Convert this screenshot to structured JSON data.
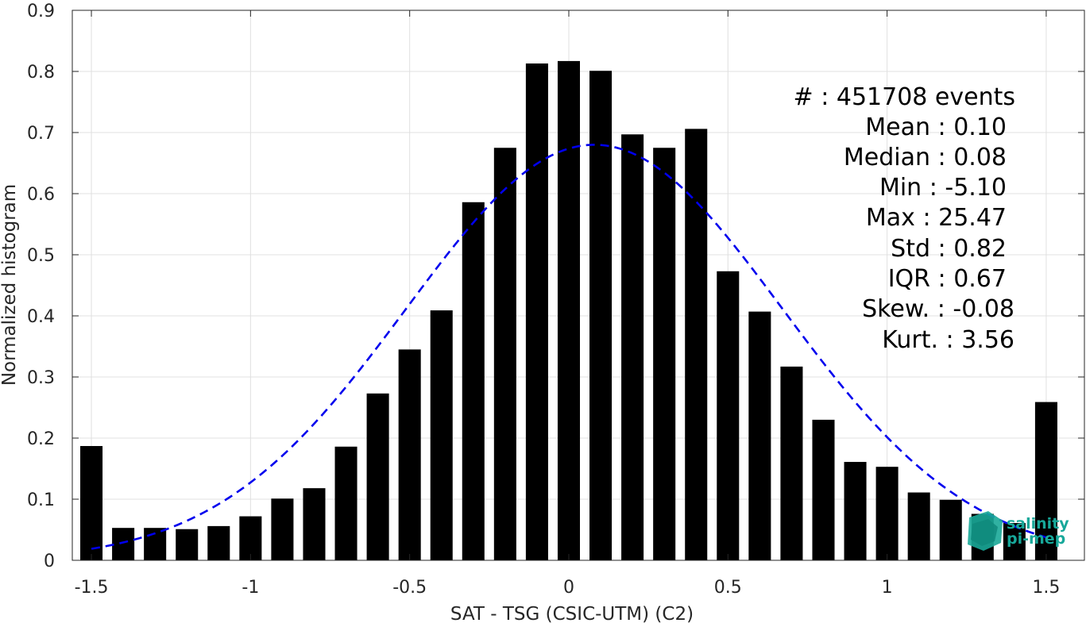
{
  "chart_data": {
    "type": "bar",
    "xlabel": "SAT - TSG (CSIC-UTM) (C2)",
    "ylabel": "Normalized histogram",
    "xlim": [
      -1.56,
      1.62
    ],
    "ylim": [
      0,
      0.9
    ],
    "xticks": [
      -1.5,
      -1,
      -0.5,
      0,
      0.5,
      1,
      1.5
    ],
    "xtick_labels": [
      "-1.5",
      "-1",
      "-0.5",
      "0",
      "0.5",
      "1",
      "1.5"
    ],
    "yticks": [
      0,
      0.1,
      0.2,
      0.3,
      0.4,
      0.5,
      0.6,
      0.7,
      0.8,
      0.9
    ],
    "ytick_labels": [
      "0",
      "0.1",
      "0.2",
      "0.3",
      "0.4",
      "0.5",
      "0.6",
      "0.7",
      "0.8",
      "0.9"
    ],
    "grid": true,
    "bar_color": "#000000",
    "bar_width": 0.07,
    "x": [
      -1.5,
      -1.4,
      -1.3,
      -1.2,
      -1.1,
      -1.0,
      -0.9,
      -0.8,
      -0.7,
      -0.6,
      -0.5,
      -0.4,
      -0.3,
      -0.2,
      -0.1,
      0.0,
      0.1,
      0.2,
      0.3,
      0.4,
      0.5,
      0.6,
      0.7,
      0.8,
      0.9,
      1.0,
      1.1,
      1.2,
      1.3,
      1.4,
      1.5
    ],
    "values": [
      0.187,
      0.053,
      0.053,
      0.051,
      0.056,
      0.072,
      0.101,
      0.118,
      0.186,
      0.273,
      0.345,
      0.409,
      0.586,
      0.675,
      0.813,
      0.817,
      0.801,
      0.697,
      0.675,
      0.706,
      0.473,
      0.407,
      0.317,
      0.23,
      0.161,
      0.153,
      0.111,
      0.099,
      0.076,
      0.061,
      0.259
    ],
    "fit_curve": {
      "style": "dashed",
      "color": "#0000ee",
      "mean": 0.08,
      "std": 0.59,
      "peak": 0.68,
      "x_range": [
        -1.5,
        1.5
      ]
    },
    "annotations": [
      "#  : 451708 events",
      "Mean : 0.10",
      "Median : 0.08",
      "Min : -5.10",
      "Max : 25.47",
      "Std : 0.82",
      "IQR : 0.67",
      "Skew. : -0.08",
      "Kurt. : 3.56"
    ]
  },
  "logo": {
    "line1": "salinity",
    "line2": "pi-mep",
    "color": "#17a89a"
  }
}
